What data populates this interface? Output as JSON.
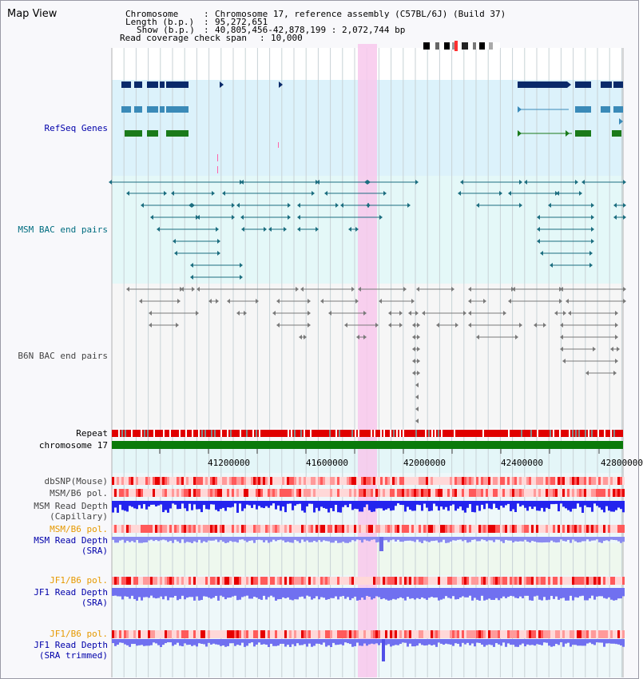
{
  "header": {
    "title": "Map View",
    "chromosome_key": "Chromosome",
    "chromosome_value": "Chromosome 17, reference assembly (C57BL/6J) (Build 37)",
    "length_key": "Length (b.p.)",
    "length_value": "95,272,651",
    "show_key": "Show (b.p.)",
    "show_value": "40,805,456-42,878,199 : 2,072,744 bp",
    "coverage_key": "Read coverage check span",
    "coverage_value": "10,000"
  },
  "tracks": {
    "refseq": "RefSeq Genes",
    "msm_bac": "MSM BAC end pairs",
    "b6n_bac": "B6N BAC end pairs",
    "repeat": "Repeat",
    "chromosome": "chromosome 17",
    "dbsnp": "dbSNP(Mouse)",
    "msm_b6_pol_1": "MSM/B6 pol.",
    "msm_depth_cap_1": "MSM Read Depth",
    "msm_depth_cap_2": "(Capillary)",
    "msm_b6_pol_2": "MSM/B6 pol.",
    "msm_depth_sra_1": "MSM Read Depth",
    "msm_depth_sra_2": "(SRA)",
    "jf1_b6_pol_1": "JF1/B6 pol.",
    "jf1_depth_sra_1": "JF1 Read Depth",
    "jf1_depth_sra_2": "(SRA)",
    "jf1_b6_pol_2": "JF1/B6 pol.",
    "jf1_depth_trim_1": "JF1 Read Depth",
    "jf1_depth_trim_2": "(SRA trimmed)"
  },
  "axis": {
    "ticks": [
      "41200000",
      "41600000",
      "42000000",
      "42400000",
      "42800000"
    ]
  },
  "colors": {
    "blue_label": "#0000aa",
    "teal_label": "#006d80",
    "orange_label": "#e69900",
    "gray_label": "#444444",
    "highlight": "#f8c8ec"
  }
}
